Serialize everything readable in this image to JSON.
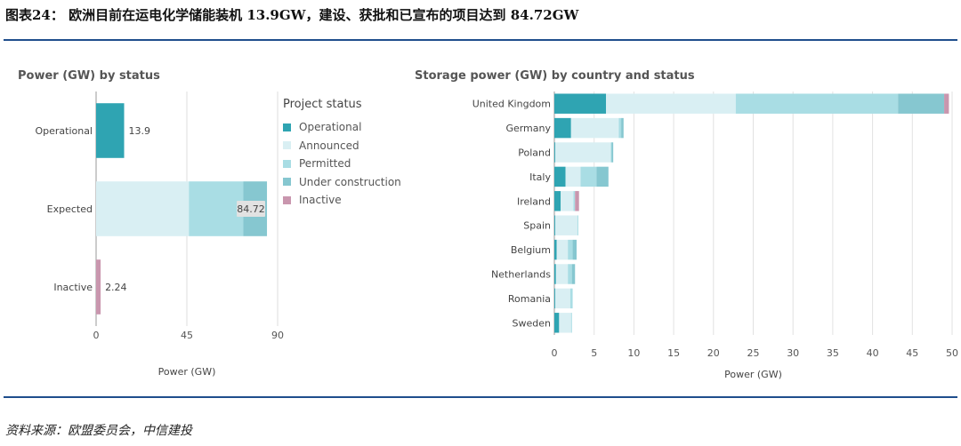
{
  "figure_title": "图表24：  欧洲目前在运电化学储能装机 13.9GW，建设、获批和已宣布的项目达到 84.72GW",
  "source": "资料来源：欧盟委员会，中信建投",
  "colors": {
    "operational": "#2fa4b2",
    "announced": "#d9eff3",
    "permitted": "#a9dde4",
    "under_construction": "#86c7d0",
    "inactive": "#c996ae",
    "rule": "#1f4e8c"
  },
  "legend": {
    "title": "Project status",
    "items": [
      {
        "key": "operational",
        "label": "Operational"
      },
      {
        "key": "announced",
        "label": "Announced"
      },
      {
        "key": "permitted",
        "label": "Permitted"
      },
      {
        "key": "under_construction",
        "label": "Under construction"
      },
      {
        "key": "inactive",
        "label": "Inactive"
      }
    ]
  },
  "chart_data": [
    {
      "type": "bar",
      "orientation": "horizontal",
      "stacked": true,
      "title": "Power (GW) by status",
      "xlabel": "Power (GW)",
      "xlim": [
        0,
        90
      ],
      "xticks": [
        0,
        45,
        90
      ],
      "categories": [
        "Operational",
        "Expected",
        "Inactive"
      ],
      "series": [
        {
          "name": "Operational",
          "key": "operational",
          "values": [
            13.9,
            0,
            0
          ]
        },
        {
          "name": "Announced",
          "key": "announced",
          "values": [
            0,
            46.0,
            0
          ]
        },
        {
          "name": "Permitted",
          "key": "permitted",
          "values": [
            0,
            27.0,
            0
          ]
        },
        {
          "name": "Under construction",
          "key": "under_construction",
          "values": [
            0,
            11.72,
            0
          ]
        },
        {
          "name": "Inactive",
          "key": "inactive",
          "values": [
            0,
            0,
            2.24
          ]
        }
      ],
      "data_labels": [
        "13.9",
        "84.72",
        "2.24"
      ]
    },
    {
      "type": "bar",
      "orientation": "horizontal",
      "stacked": true,
      "title": "Storage power (GW) by country and status",
      "xlabel": "Power (GW)",
      "xlim": [
        0,
        50
      ],
      "xticks": [
        0,
        5,
        10,
        15,
        20,
        25,
        30,
        35,
        40,
        45,
        50
      ],
      "categories": [
        "United Kingdom",
        "Germany",
        "Poland",
        "Italy",
        "Ireland",
        "Spain",
        "Belgium",
        "Netherlands",
        "Romania",
        "Sweden"
      ],
      "series": [
        {
          "name": "Operational",
          "key": "operational",
          "values": [
            6.5,
            2.1,
            0.1,
            1.4,
            0.8,
            0.1,
            0.3,
            0.2,
            0.1,
            0.6
          ]
        },
        {
          "name": "Announced",
          "key": "announced",
          "values": [
            16.3,
            6.0,
            7.0,
            1.9,
            1.6,
            2.8,
            1.4,
            1.5,
            1.9,
            1.5
          ]
        },
        {
          "name": "Permitted",
          "key": "permitted",
          "values": [
            20.4,
            0.3,
            0.1,
            2.0,
            0.2,
            0.1,
            0.6,
            0.5,
            0.3,
            0.1
          ]
        },
        {
          "name": "Under construction",
          "key": "under_construction",
          "values": [
            5.8,
            0.3,
            0.2,
            1.5,
            0,
            0,
            0.5,
            0.4,
            0,
            0
          ]
        },
        {
          "name": "Inactive",
          "key": "inactive",
          "values": [
            0.6,
            0,
            0,
            0,
            0.5,
            0,
            0,
            0,
            0,
            0
          ]
        }
      ]
    }
  ]
}
